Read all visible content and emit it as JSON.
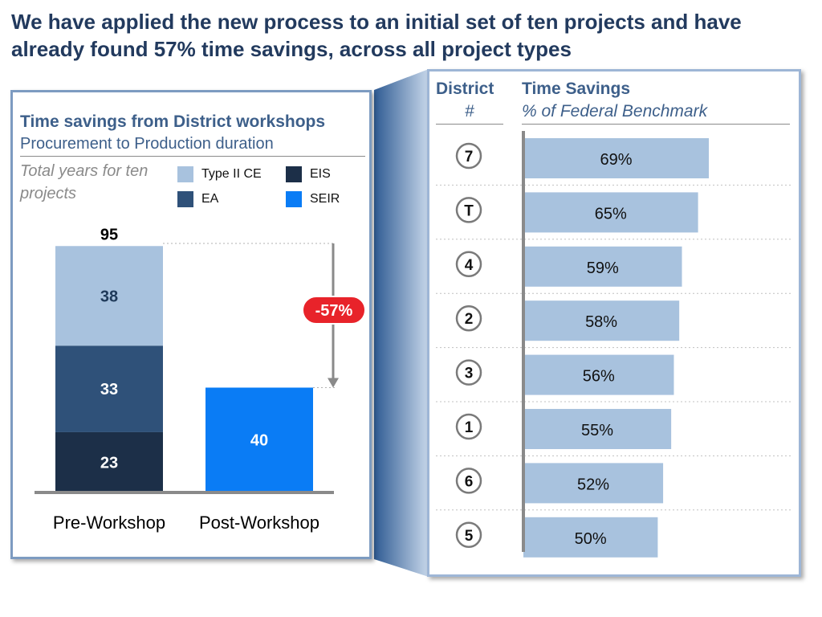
{
  "headline": "We have applied the new process to an initial set of ten projects and have already found 57% time savings, across all project types",
  "left_panel": {
    "title": "Time savings from District workshops",
    "subtitle": "Procurement to Production duration",
    "unit_label": "Total years for ten projects"
  },
  "right_panel": {
    "district_header": "District",
    "district_subheader": "#",
    "savings_header": "Time Savings",
    "savings_subheader": "% of Federal Benchmark"
  },
  "colors": {
    "type_ii_ce": "#a8c2de",
    "ea": "#2f5179",
    "eis": "#1c2f48",
    "seir": "#0a7cf5",
    "savings_bar": "#a8c2de",
    "callout": "#e8232a"
  },
  "chart_data": [
    {
      "type": "bar",
      "stacked": true,
      "categories": [
        "Pre-Workshop",
        "Post-Workshop"
      ],
      "series": [
        {
          "name": "EIS",
          "values": [
            23,
            null
          ]
        },
        {
          "name": "EA",
          "values": [
            33,
            null
          ]
        },
        {
          "name": "Type II CE",
          "values": [
            38,
            null
          ]
        },
        {
          "name": "SEIR",
          "values": [
            null,
            40
          ]
        }
      ],
      "totals": [
        "95",
        null
      ],
      "legend_order": [
        "Type II CE",
        "EIS",
        "EA",
        "SEIR"
      ],
      "annotation": "-57%",
      "ylim": [
        0,
        100
      ],
      "legend": "top"
    },
    {
      "type": "bar",
      "orientation": "horizontal",
      "categories": [
        "7",
        "T",
        "4",
        "2",
        "3",
        "1",
        "6",
        "5"
      ],
      "values": [
        69,
        65,
        59,
        58,
        56,
        55,
        52,
        50
      ],
      "labels": [
        "69%",
        "65%",
        "59%",
        "58%",
        "56%",
        "55%",
        "52%",
        "50%"
      ]
    }
  ]
}
